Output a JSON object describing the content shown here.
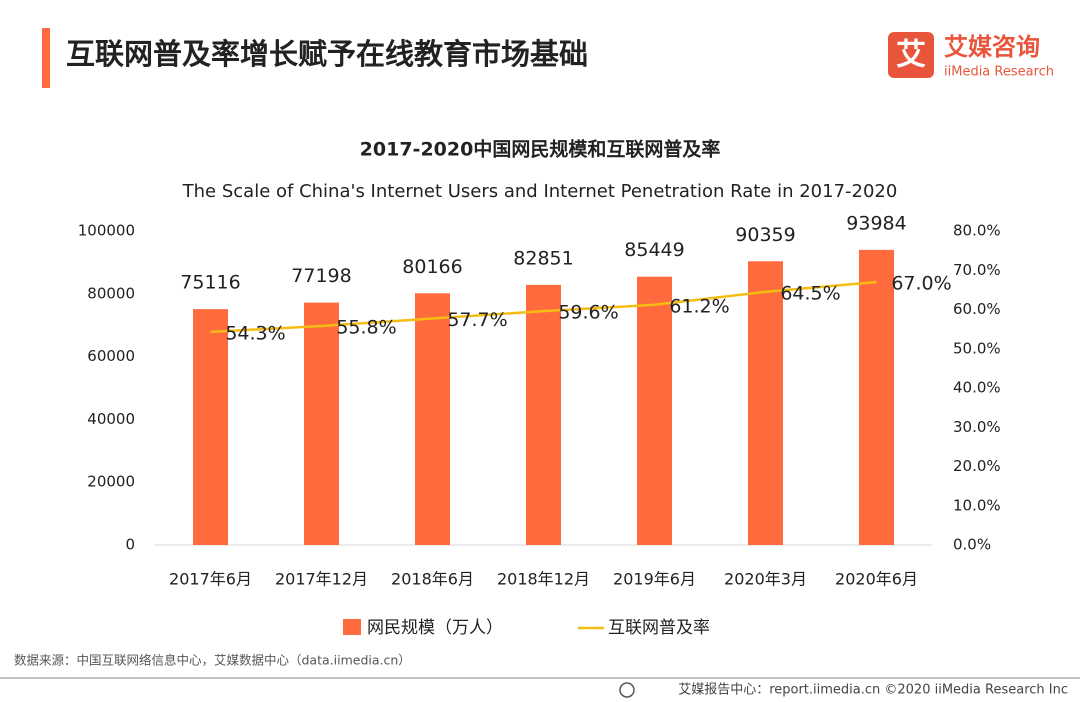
{
  "header": {
    "title": "互联网普及率增长赋予在线教育市场基础",
    "logo_icon": "艾",
    "logo_name": "艾媒咨询",
    "logo_sub": "iiMedia Research"
  },
  "chart_data": {
    "type": "combo",
    "title": "2017-2020中国网民规模和互联网普及率",
    "subtitle": "The Scale of China's Internet Users and Internet Penetration Rate in 2017-2020",
    "categories": [
      "2017年6月",
      "2017年12月",
      "2018年6月",
      "2018年12月",
      "2019年6月",
      "2020年3月",
      "2020年6月"
    ],
    "series": [
      {
        "name": "网民规模（万人）",
        "type": "bar",
        "color": "#ff6b3d",
        "values": [
          75116,
          77198,
          80166,
          82851,
          85449,
          90359,
          93984
        ]
      },
      {
        "name": "互联网普及率",
        "type": "line",
        "axis": "y2",
        "color": "#f5bd12",
        "values": [
          54.3,
          55.8,
          57.7,
          59.6,
          61.2,
          64.5,
          67.0
        ],
        "value_labels": [
          "54.3%",
          "55.8%",
          "57.7%",
          "59.6%",
          "61.2%",
          "64.5%",
          "67.0%"
        ]
      }
    ],
    "ylim": [
      0,
      100000
    ],
    "yticks": [
      0,
      20000,
      40000,
      60000,
      80000,
      100000
    ],
    "y2lim": [
      0,
      80
    ],
    "y2ticks": [
      {
        "value": 0,
        "label": "0.0%"
      },
      {
        "value": 10,
        "label": "10.0%"
      },
      {
        "value": 20,
        "label": "20.0%"
      },
      {
        "value": 30,
        "label": "30.0%"
      },
      {
        "value": 40,
        "label": "40.0%"
      },
      {
        "value": 50,
        "label": "50.0%"
      },
      {
        "value": 60,
        "label": "60.0%"
      },
      {
        "value": 70,
        "label": "70.0%"
      },
      {
        "value": 80,
        "label": "80.0%"
      }
    ],
    "grid": false,
    "legend": "bottom"
  },
  "source": "数据来源：中国互联网络信息中心，艾媒数据中心（data.iimedia.cn）",
  "footer": "艾媒报告中心：report.iimedia.cn  ©2020  iiMedia Research  Inc"
}
